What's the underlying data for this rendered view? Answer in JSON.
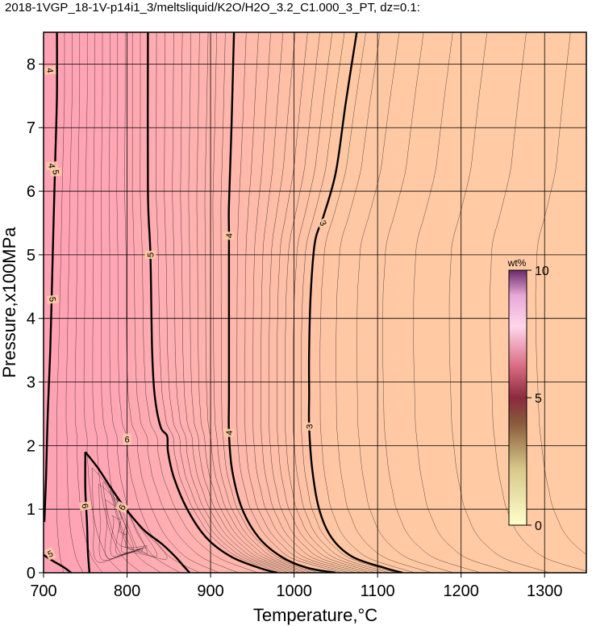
{
  "chart_data": {
    "type": "contour",
    "title": "2018-1VGP_18-1V-p14i1_3/meltsliquid/K2O/H2O_3.2_C1.000_3_PT, dz=0.1:",
    "xlabel": "Temperature,°C",
    "ylabel": "Pressure,x100MPa",
    "xlim": [
      700,
      1350
    ],
    "ylim": [
      0,
      8.5
    ],
    "x_ticks": [
      700,
      800,
      900,
      1000,
      1100,
      1200,
      1300
    ],
    "y_ticks": [
      0,
      1,
      2,
      3,
      4,
      5,
      6,
      7,
      8
    ],
    "grid": true,
    "contour_interval": 0.1,
    "colorbar": {
      "unit": "wt%",
      "range": [
        0,
        10
      ],
      "ticks": [
        0,
        5,
        10
      ],
      "colors": [
        "#ffffcc",
        "#7a5a30",
        "#8a2040",
        "#ffe6f5",
        "#7a3a7a"
      ]
    },
    "fill_colors": {
      "low": "#ffcba4",
      "high": "#ffa6b4"
    },
    "labeled_contours": [
      {
        "level": 3,
        "label": "3",
        "points": [
          [
            1075,
            8.5
          ],
          [
            1062,
            7.4
          ],
          [
            1050,
            6.3
          ],
          [
            1035,
            5.6
          ],
          [
            1025,
            5.2
          ],
          [
            1020,
            4.4
          ],
          [
            1018,
            3.5
          ],
          [
            1018,
            2.8
          ],
          [
            1018,
            2.3
          ],
          [
            1022,
            1.6
          ],
          [
            1030,
            1.0
          ],
          [
            1045,
            0.55
          ],
          [
            1070,
            0.25
          ],
          [
            1110,
            0.07
          ],
          [
            1130,
            0.0
          ]
        ]
      },
      {
        "level": 4,
        "label": "4",
        "points": [
          [
            928,
            8.5
          ],
          [
            925,
            7.0
          ],
          [
            922,
            5.8
          ],
          [
            922,
            5.3
          ],
          [
            922,
            4.0
          ],
          [
            922,
            2.8
          ],
          [
            922,
            2.2
          ],
          [
            926,
            1.6
          ],
          [
            938,
            1.0
          ],
          [
            958,
            0.55
          ],
          [
            985,
            0.25
          ],
          [
            1015,
            0.08
          ],
          [
            1050,
            0.0
          ]
        ]
      },
      {
        "level": 5,
        "label": "5",
        "points": [
          [
            825,
            8.5
          ],
          [
            825,
            6.0
          ],
          [
            828,
            5.0
          ],
          [
            830,
            3.5
          ],
          [
            833,
            2.8
          ],
          [
            840,
            2.3
          ],
          [
            848,
            2.15
          ],
          [
            849,
            1.9
          ],
          [
            856,
            1.5
          ],
          [
            872,
            1.0
          ],
          [
            895,
            0.55
          ],
          [
            925,
            0.25
          ],
          [
            960,
            0.07
          ],
          [
            980,
            0.0
          ]
        ]
      },
      {
        "level": 5,
        "label": "5",
        "points": [
          [
            716,
            8.5
          ],
          [
            716,
            7.5
          ],
          [
            714,
            6.5
          ],
          [
            712,
            5.5
          ],
          [
            710,
            4.5
          ],
          [
            708,
            3.5
          ],
          [
            705,
            2.5
          ],
          [
            703,
            1.5
          ],
          [
            701,
            0.8
          ]
        ]
      },
      {
        "level": 6,
        "label": "6",
        "points": [
          [
            750,
            1.9
          ],
          [
            750,
            1.3
          ],
          [
            752,
            0.8
          ],
          [
            753,
            0.35
          ],
          [
            755,
            0.0
          ]
        ]
      },
      {
        "level": 6,
        "label": "6",
        "points": [
          [
            750,
            1.9
          ],
          [
            765,
            1.65
          ],
          [
            780,
            1.35
          ],
          [
            793,
            1.1
          ],
          [
            808,
            0.85
          ],
          [
            822,
            0.65
          ],
          [
            842,
            0.45
          ],
          [
            858,
            0.25
          ],
          [
            868,
            0.1
          ],
          [
            875,
            0.0
          ]
        ]
      },
      {
        "level": 5,
        "label": "5",
        "points": [
          [
            700,
            0.28
          ],
          [
            712,
            0.18
          ],
          [
            725,
            0.08
          ],
          [
            733,
            0.0
          ]
        ]
      }
    ],
    "contour_labels": [
      {
        "text": "3",
        "x": 1035,
        "y": 5.5,
        "angle": -62
      },
      {
        "text": "3",
        "x": 1018,
        "y": 2.3,
        "angle": 90
      },
      {
        "text": "4",
        "x": 922,
        "y": 5.3,
        "angle": 90
      },
      {
        "text": "4",
        "x": 922,
        "y": 2.2,
        "angle": 90
      },
      {
        "text": "5",
        "x": 828,
        "y": 5.0,
        "angle": 90
      },
      {
        "text": "5",
        "x": 711,
        "y": 4.3,
        "angle": -84
      },
      {
        "text": "5",
        "x": 715,
        "y": 6.3,
        "angle": -84
      },
      {
        "text": "4",
        "x": 710,
        "y": 6.4,
        "angle": -84
      },
      {
        "text": "4",
        "x": 708,
        "y": 7.9,
        "angle": -84
      },
      {
        "text": "6",
        "x": 750,
        "y": 1.05,
        "angle": -80
      },
      {
        "text": "6",
        "x": 794,
        "y": 1.03,
        "angle": 62
      },
      {
        "text": "6",
        "x": 800,
        "y": 2.1,
        "angle": 0
      },
      {
        "text": "5",
        "x": 708,
        "y": 0.3,
        "angle": 25
      }
    ]
  }
}
